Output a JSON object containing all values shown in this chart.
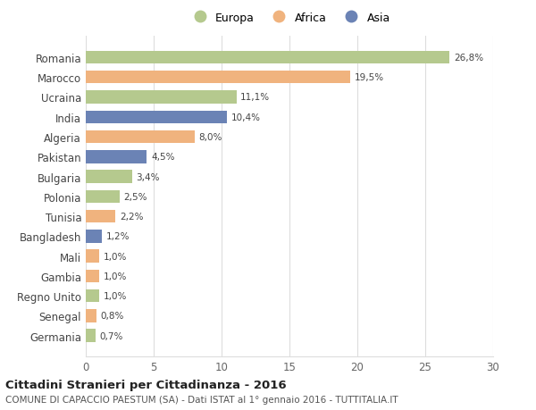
{
  "countries": [
    "Romania",
    "Marocco",
    "Ucraina",
    "India",
    "Algeria",
    "Pakistan",
    "Bulgaria",
    "Polonia",
    "Tunisia",
    "Bangladesh",
    "Mali",
    "Gambia",
    "Regno Unito",
    "Senegal",
    "Germania"
  ],
  "values": [
    26.8,
    19.5,
    11.1,
    10.4,
    8.0,
    4.5,
    3.4,
    2.5,
    2.2,
    1.2,
    1.0,
    1.0,
    1.0,
    0.8,
    0.7
  ],
  "labels": [
    "26,8%",
    "19,5%",
    "11,1%",
    "10,4%",
    "8,0%",
    "4,5%",
    "3,4%",
    "2,5%",
    "2,2%",
    "1,2%",
    "1,0%",
    "1,0%",
    "1,0%",
    "0,8%",
    "0,7%"
  ],
  "continents": [
    "Europa",
    "Africa",
    "Europa",
    "Asia",
    "Africa",
    "Asia",
    "Europa",
    "Europa",
    "Africa",
    "Asia",
    "Africa",
    "Africa",
    "Europa",
    "Africa",
    "Europa"
  ],
  "colors": {
    "Europa": "#b5c98e",
    "Africa": "#f0b37e",
    "Asia": "#6b83b5"
  },
  "legend_labels": [
    "Europa",
    "Africa",
    "Asia"
  ],
  "title": "Cittadini Stranieri per Cittadinanza - 2016",
  "subtitle": "COMUNE DI CAPACCIO PAESTUM (SA) - Dati ISTAT al 1° gennaio 2016 - TUTTITALIA.IT",
  "xlim": [
    0,
    30
  ],
  "xticks": [
    0,
    5,
    10,
    15,
    20,
    25,
    30
  ],
  "background_color": "#ffffff",
  "grid_color": "#dddddd",
  "bar_height": 0.65
}
